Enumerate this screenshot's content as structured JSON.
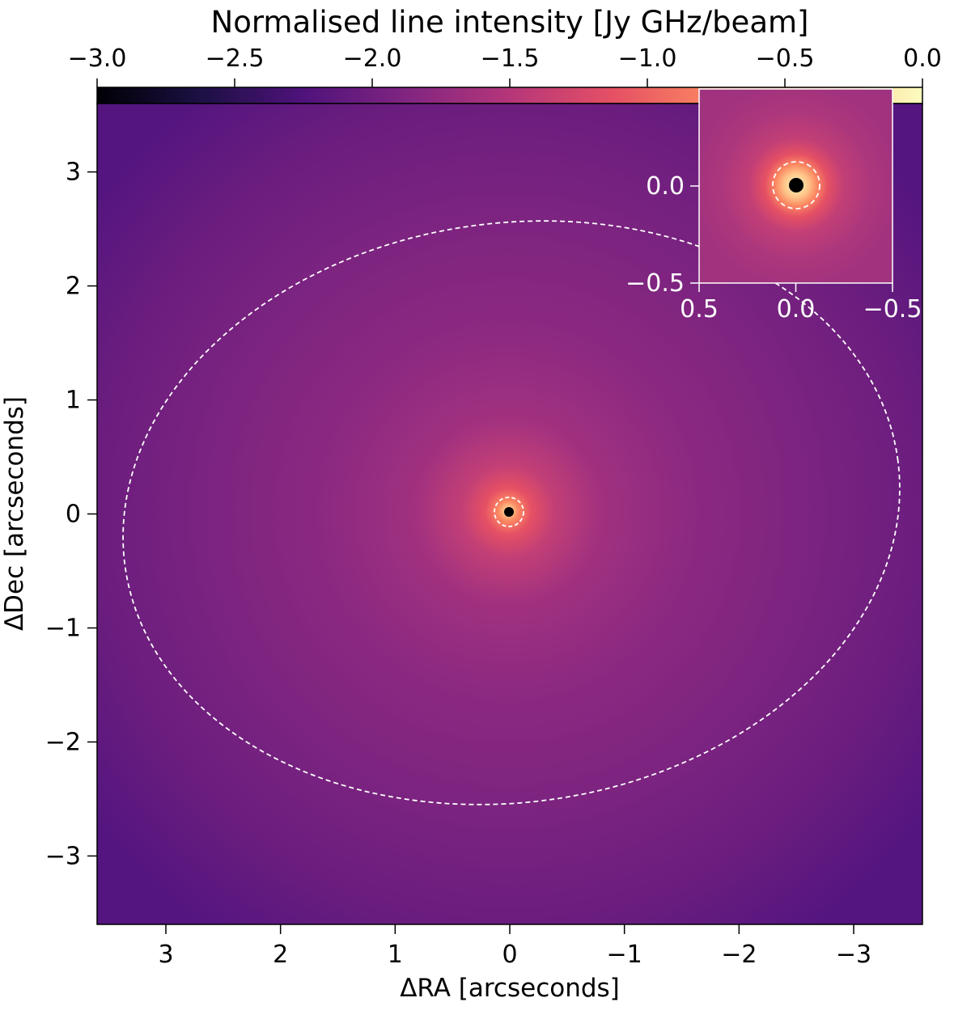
{
  "chart_data": {
    "type": "heatmap",
    "title": "",
    "colormap": "magma",
    "colorbar": {
      "label": "Normalised line intensity [Jy GHz/beam]",
      "range": [
        -3.0,
        0.0
      ],
      "ticks": [
        "−3.0",
        "−2.5",
        "−2.0",
        "−1.5",
        "−1.0",
        "−0.5",
        "0.0"
      ],
      "tick_values": [
        -3.0,
        -2.5,
        -2.0,
        -1.5,
        -1.0,
        -0.5,
        0.0
      ],
      "placement": "top"
    },
    "xlabel": "ΔRA [arcseconds]",
    "ylabel": "ΔDec [arcseconds]",
    "xlim": [
      3.6,
      -3.6
    ],
    "ylim": [
      -3.6,
      3.6
    ],
    "x_ticks": [
      "3",
      "2",
      "1",
      "0",
      "−1",
      "−2",
      "−3"
    ],
    "x_tick_values": [
      3,
      2,
      1,
      0,
      -1,
      -2,
      -3
    ],
    "y_ticks": [
      "3",
      "2",
      "1",
      "0",
      "−1",
      "−2",
      "−3"
    ],
    "y_tick_values": [
      3,
      2,
      1,
      0,
      -1,
      -2,
      -3
    ],
    "intensity_profile": {
      "peak_value": 0.0,
      "core_value": -0.6,
      "value_at_0p3": -1.3,
      "value_at_1p0": -1.65,
      "value_at_2p5": -1.85,
      "edge_value": -2.2
    },
    "central_hole": {
      "center": [
        0.0,
        0.0
      ],
      "radius": 0.045,
      "color": "#000000"
    },
    "contours": [
      {
        "name": "inner",
        "center": [
          0.0,
          0.0
        ],
        "semi_major": 0.13,
        "semi_minor": 0.13,
        "angle_deg": 0,
        "style": "dashed",
        "color": "#ffffff"
      },
      {
        "name": "outer",
        "center": [
          0.0,
          0.0
        ],
        "semi_major": 3.45,
        "semi_minor": 2.5,
        "angle_deg": -8,
        "style": "dashed",
        "color": "#ffffff"
      }
    ],
    "inset": {
      "placement": "top-right",
      "xlim": [
        0.5,
        -0.5
      ],
      "ylim": [
        -0.5,
        0.5
      ],
      "x_ticks": [
        "0.5",
        "0.0",
        "−0.5"
      ],
      "x_tick_values": [
        0.5,
        0.0,
        -0.5
      ],
      "y_ticks": [
        "−0.5",
        "0.0"
      ],
      "y_tick_values": [
        -0.5,
        0.0
      ],
      "central_hole_radius": 0.07,
      "contour_radius": 0.13,
      "tick_label_color": "#ffffff"
    }
  }
}
